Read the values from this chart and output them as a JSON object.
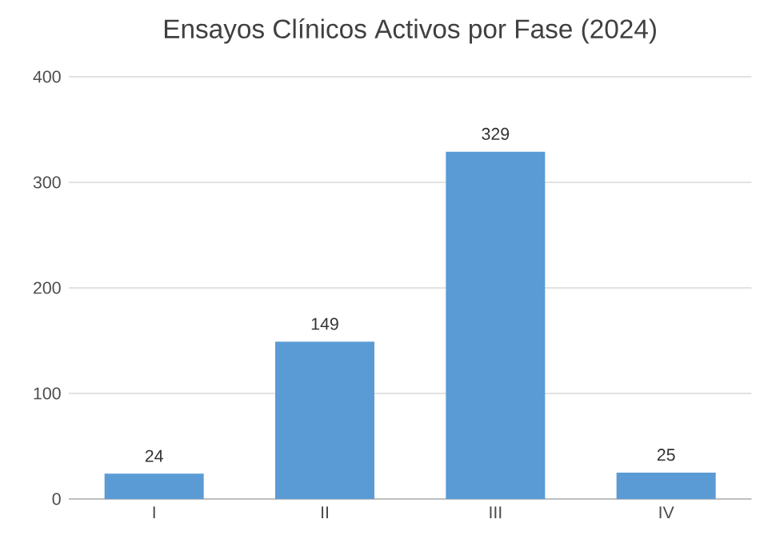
{
  "chart_data": {
    "type": "bar",
    "title": "Ensayos Clínicos Activos por Fase (2024)",
    "categories": [
      "I",
      "II",
      "III",
      "IV"
    ],
    "values": [
      24,
      149,
      329,
      25
    ],
    "color": "#5b9bd5",
    "ylim": [
      0,
      400
    ],
    "yticks": [
      0,
      100,
      200,
      300,
      400
    ],
    "grid": "y",
    "data_labels": true
  }
}
